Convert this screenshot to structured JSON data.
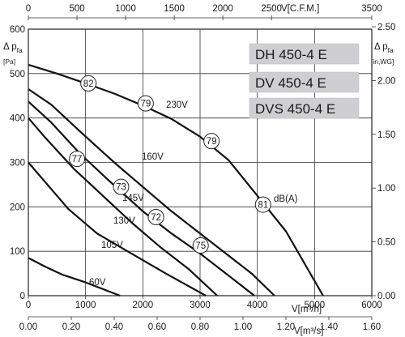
{
  "chart_data": {
    "type": "line",
    "models": [
      "DH 450-4 E",
      "DV 450-4 E",
      "DVS 450-4 E"
    ],
    "y_left_label": "Δ p",
    "y_left_sub": "fa",
    "y_left_unit": "[Pa]",
    "y_right_label": "Δ p",
    "y_right_sub": "fa",
    "y_right_unit": "[in,WG]",
    "x_bottom_label": "V[m³/h]",
    "x_top_label": "V[C.F.M.]",
    "x_bottom2_label": "V[m³/s]",
    "x_bottom_ticks": [
      "0",
      "1000",
      "2000",
      "3000",
      "4000",
      "5000",
      "6000"
    ],
    "x_top_ticks": [
      "0",
      "500",
      "1000",
      "1500",
      "2000",
      "2500",
      "3500"
    ],
    "x_bottom2_ticks": [
      "0.00",
      "0.20",
      "0.40",
      "0.60",
      "0.80",
      "1.00",
      "1.20",
      "1.40",
      "1.60"
    ],
    "y_left_ticks": [
      "0",
      "100",
      "200",
      "300",
      "400",
      "500",
      "600"
    ],
    "y_right_ticks": [
      "0.00",
      "0.50",
      "1.00",
      "1.50",
      "2.00",
      "2.50"
    ],
    "xlim": [
      0,
      6000
    ],
    "ylim": [
      0,
      600
    ],
    "grid": true,
    "series": [
      {
        "name": "230V",
        "x": [
          0,
          500,
          1000,
          1500,
          2000,
          2500,
          3000,
          3500,
          4000,
          4500,
          5150
        ],
        "y": [
          520,
          500,
          478,
          455,
          428,
          398,
          358,
          305,
          225,
          145,
          0
        ]
      },
      {
        "name": "160V",
        "x": [
          0,
          400,
          900,
          1500,
          2000,
          2500,
          3000,
          3500,
          3900,
          4300
        ],
        "y": [
          465,
          430,
          370,
          300,
          245,
          190,
          140,
          90,
          50,
          0
        ]
      },
      {
        "name": "145V",
        "x": [
          0,
          400,
          900,
          1400,
          2000,
          2500,
          3000,
          3500,
          3950
        ],
        "y": [
          437,
          390,
          320,
          260,
          190,
          140,
          95,
          45,
          0
        ]
      },
      {
        "name": "130V",
        "x": [
          0,
          300,
          800,
          1300,
          1800,
          2300,
          2800,
          3300
        ],
        "y": [
          400,
          355,
          285,
          225,
          165,
          110,
          60,
          0
        ]
      },
      {
        "name": "105V",
        "x": [
          0,
          300,
          700,
          1200,
          1800,
          2400,
          3100
        ],
        "y": [
          300,
          255,
          195,
          140,
          95,
          50,
          0
        ]
      },
      {
        "name": "60V",
        "x": [
          0,
          300,
          600,
          1000,
          1400,
          1600
        ],
        "y": [
          85,
          65,
          47,
          30,
          10,
          0
        ]
      }
    ],
    "voltage_labels": [
      "230V",
      "160V",
      "145V",
      "130V",
      "105V",
      "60V"
    ],
    "db_markers": [
      {
        "label": "82",
        "x": 1050,
        "y": 478
      },
      {
        "label": "79",
        "x": 2050,
        "y": 433
      },
      {
        "label": "79",
        "x": 3200,
        "y": 348
      },
      {
        "label": "81",
        "x": 4100,
        "y": 205
      },
      {
        "label": "77",
        "x": 850,
        "y": 308
      },
      {
        "label": "73",
        "x": 1620,
        "y": 245
      },
      {
        "label": "72",
        "x": 2230,
        "y": 177
      },
      {
        "label": "75",
        "x": 3010,
        "y": 113
      }
    ],
    "db_unit": "dB(A)"
  }
}
